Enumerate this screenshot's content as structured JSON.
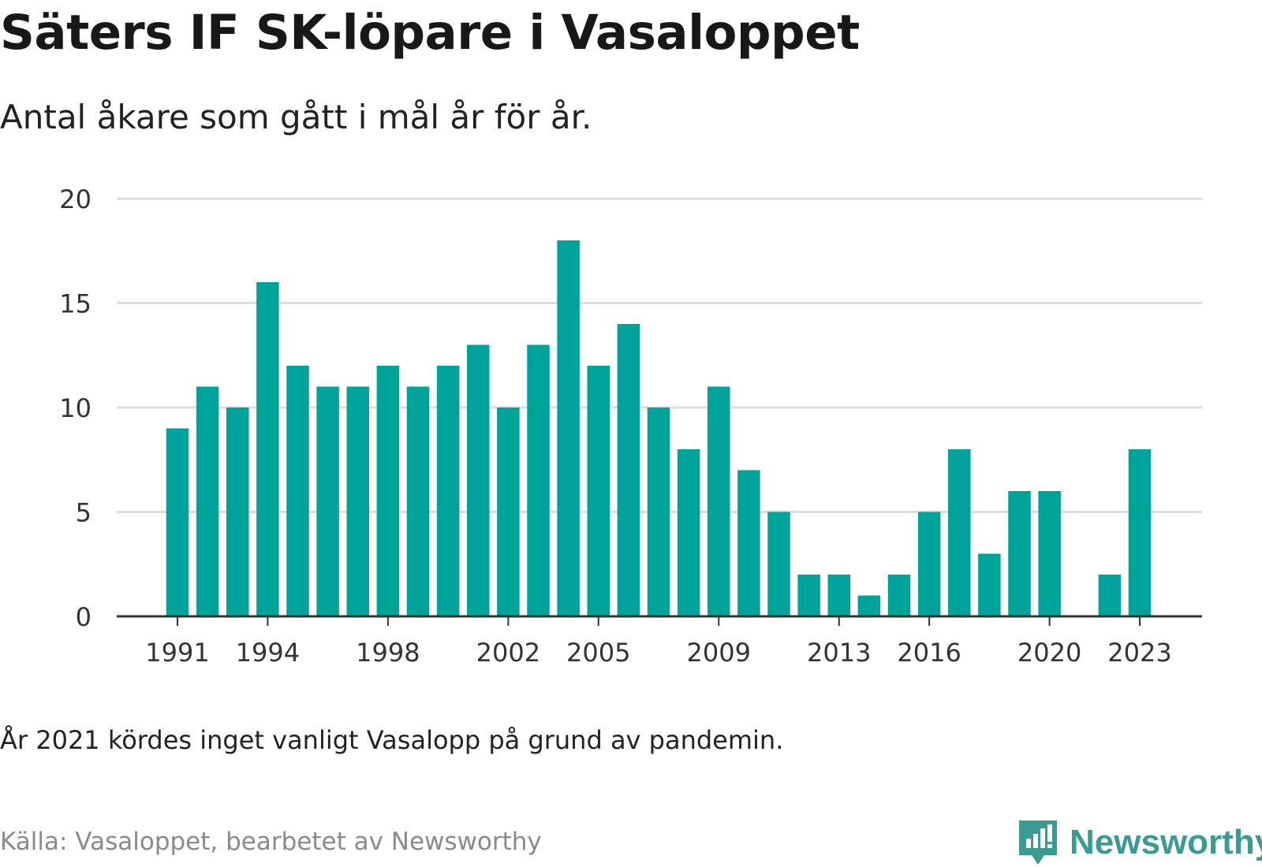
{
  "title": "Säters IF SK-löpare i Vasaloppet",
  "subtitle": "Antal åkare som gått i mål år för år.",
  "note": "År 2021 kördes inget vanligt Vasalopp på grund av pandemin.",
  "source": "Källa: Vasaloppet, bearbetet av Newsworthy",
  "brand": {
    "name": "Newsworthy",
    "color": "#3a9b93",
    "icon": "newsworthy-logo-icon"
  },
  "colors": {
    "bar": "#00a39a",
    "grid": "#dddddd",
    "axis": "#333333"
  },
  "chart_data": {
    "type": "bar",
    "categories": [
      1991,
      1992,
      1993,
      1994,
      1995,
      1996,
      1997,
      1998,
      1999,
      2000,
      2001,
      2002,
      2003,
      2004,
      2005,
      2006,
      2007,
      2008,
      2009,
      2010,
      2011,
      2012,
      2013,
      2014,
      2015,
      2016,
      2017,
      2018,
      2019,
      2020,
      2021,
      2022,
      2023
    ],
    "values": [
      9,
      11,
      10,
      16,
      12,
      11,
      11,
      12,
      11,
      12,
      13,
      10,
      13,
      18,
      12,
      14,
      10,
      8,
      11,
      7,
      5,
      2,
      2,
      1,
      2,
      5,
      8,
      3,
      6,
      6,
      null,
      2,
      8
    ],
    "x_tick_labels": [
      "1991",
      "1994",
      "1998",
      "2002",
      "2005",
      "2009",
      "2013",
      "2016",
      "2020",
      "2023"
    ],
    "y_ticks": [
      0,
      5,
      10,
      15,
      20
    ],
    "ylim": [
      0,
      20
    ],
    "grid": true,
    "title": "Säters IF SK-löpare i Vasaloppet",
    "subtitle": "Antal åkare som gått i mål år för år."
  }
}
